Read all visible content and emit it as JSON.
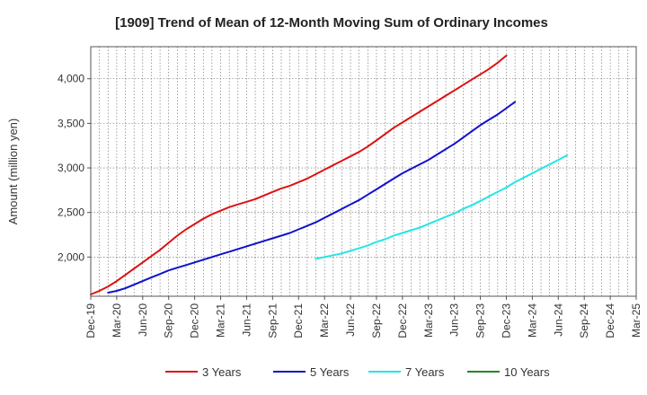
{
  "chart_data": {
    "type": "line",
    "title": "[1909]  Trend of Mean of 12-Month Moving Sum of Ordinary Incomes",
    "xlabel": "",
    "ylabel": "Amount (million yen)",
    "ylim": [
      1560,
      4360
    ],
    "yticks": [
      2000,
      2500,
      3000,
      3500,
      4000
    ],
    "ytick_labels": [
      "2,000",
      "2,500",
      "3,000",
      "3,500",
      "4,000"
    ],
    "xtick_labels": [
      "Dec-19",
      "Mar-20",
      "Jun-20",
      "Sep-20",
      "Dec-20",
      "Mar-21",
      "Jun-21",
      "Sep-21",
      "Dec-21",
      "Mar-22",
      "Jun-22",
      "Sep-22",
      "Dec-22",
      "Mar-23",
      "Jun-23",
      "Sep-23",
      "Dec-23",
      "Mar-24",
      "Jun-24",
      "Sep-24",
      "Dec-24",
      "Mar-25"
    ],
    "grid": true,
    "legend_position": "bottom",
    "series": [
      {
        "name": "3 Years",
        "color": "#dd1111",
        "start_index": 0,
        "values": [
          1580,
          1620,
          1670,
          1730,
          1800,
          1870,
          1940,
          2010,
          2080,
          2160,
          2240,
          2310,
          2370,
          2430,
          2480,
          2520,
          2560,
          2590,
          2620,
          2650,
          2690,
          2730,
          2770,
          2800,
          2840,
          2880,
          2930,
          2980,
          3030,
          3080,
          3130,
          3180,
          3240,
          3310,
          3380,
          3450,
          3510,
          3570,
          3630,
          3690,
          3750,
          3810,
          3870,
          3930,
          3990,
          4050,
          4110,
          4180,
          4260
        ]
      },
      {
        "name": "5 Years",
        "color": "#1111cc",
        "start_index": 2,
        "values": [
          1600,
          1620,
          1650,
          1690,
          1730,
          1770,
          1810,
          1850,
          1880,
          1910,
          1940,
          1970,
          2000,
          2030,
          2060,
          2090,
          2120,
          2150,
          2180,
          2210,
          2240,
          2270,
          2310,
          2350,
          2390,
          2440,
          2490,
          2540,
          2590,
          2640,
          2700,
          2760,
          2820,
          2880,
          2940,
          2990,
          3040,
          3090,
          3150,
          3210,
          3270,
          3340,
          3410,
          3480,
          3540,
          3600,
          3670,
          3740
        ]
      },
      {
        "name": "7 Years",
        "color": "#22e6e6",
        "start_index": 26,
        "values": [
          1980,
          2000,
          2020,
          2040,
          2070,
          2100,
          2130,
          2170,
          2200,
          2240,
          2270,
          2300,
          2330,
          2370,
          2410,
          2450,
          2490,
          2540,
          2580,
          2630,
          2680,
          2730,
          2780,
          2840,
          2890,
          2940,
          2990,
          3040,
          3090,
          3140
        ]
      },
      {
        "name": "10 Years",
        "color": "#228822",
        "start_index": 0,
        "values": []
      }
    ]
  }
}
